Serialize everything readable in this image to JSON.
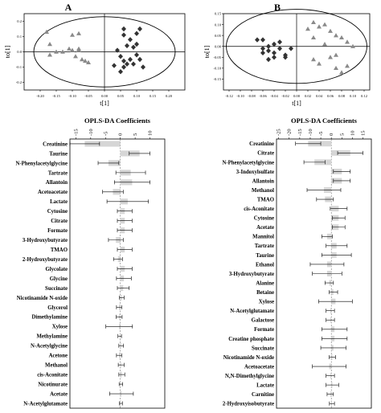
{
  "panels": [
    {
      "label": "A"
    },
    {
      "label": "B"
    }
  ],
  "chart_data": [
    {
      "type": "scatter",
      "panel": "A",
      "xlabel": "t[1]",
      "ylabel": "to[1]",
      "xlim": [
        -0.25,
        0.25
      ],
      "ylim": [
        -0.25,
        0.25
      ],
      "xticks": [
        "-0.20",
        "-0.15",
        "-0.10",
        "-0.05",
        "0.00",
        "0.05",
        "0.10",
        "0.15",
        "0.20"
      ],
      "yticks": [
        "0.2",
        "0.1",
        "0.0",
        "-0.1",
        "-0.2"
      ],
      "tick_values_x": [
        -0.2,
        -0.15,
        -0.1,
        -0.05,
        0.0,
        0.05,
        0.1,
        0.15,
        0.2
      ],
      "tick_values_y": [
        0.2,
        0.1,
        0.0,
        -0.1,
        -0.2
      ],
      "ellipse": {
        "rx": 0.22,
        "ry": 0.23
      },
      "series": [
        {
          "marker": "triangle",
          "color": "#8a8a8a",
          "points": [
            [
              -0.18,
              0.13
            ],
            [
              -0.17,
              0.05
            ],
            [
              -0.17,
              -0.02
            ],
            [
              -0.15,
              0.0
            ],
            [
              -0.13,
              0.0
            ],
            [
              -0.11,
              0.02
            ],
            [
              -0.1,
              0.01
            ],
            [
              -0.09,
              -0.03
            ],
            [
              -0.08,
              0.02
            ],
            [
              -0.08,
              0.12
            ],
            [
              -0.07,
              -0.05
            ],
            [
              -0.06,
              -0.06
            ],
            [
              -0.05,
              -0.07
            ],
            [
              -0.08,
              0.01
            ],
            [
              -0.1,
              0.11
            ]
          ]
        },
        {
          "marker": "diamond",
          "color": "#333333",
          "points": [
            [
              0.06,
              0.15
            ],
            [
              0.06,
              0.11
            ],
            [
              0.07,
              0.04
            ],
            [
              0.08,
              0.08
            ],
            [
              0.09,
              0.03
            ],
            [
              0.1,
              0.12
            ],
            [
              0.11,
              0.15
            ],
            [
              0.1,
              0.05
            ],
            [
              0.1,
              -0.02
            ],
            [
              0.11,
              -0.05
            ],
            [
              0.12,
              -0.1
            ],
            [
              0.05,
              -0.13
            ],
            [
              0.06,
              -0.06
            ],
            [
              0.07,
              -0.08
            ],
            [
              0.08,
              -0.05
            ],
            [
              0.04,
              0.01
            ],
            [
              0.05,
              -0.03
            ],
            [
              0.06,
              -0.1
            ],
            [
              0.03,
              -0.09
            ],
            [
              0.09,
              -0.08
            ]
          ]
        }
      ]
    },
    {
      "type": "scatter",
      "panel": "B",
      "xlabel": "t[1]",
      "ylabel": "to[1]",
      "xlim": [
        -0.13,
        0.13
      ],
      "ylim": [
        -0.2,
        0.15
      ],
      "xticks": [
        "-0.12",
        "-0.10",
        "-0.08",
        "-0.06",
        "-0.04",
        "-0.02",
        "0.00",
        "0.02",
        "0.04",
        "0.06",
        "0.08",
        "0.10",
        "0.12"
      ],
      "yticks": [
        "0.15",
        "0.10",
        "0.05",
        "0.00",
        "-0.05",
        "-0.10",
        "-0.15"
      ],
      "tick_values_x": [
        -0.12,
        -0.1,
        -0.08,
        -0.06,
        -0.04,
        -0.02,
        0.0,
        0.02,
        0.04,
        0.06,
        0.08,
        0.1,
        0.12
      ],
      "tick_values_y": [
        0.15,
        0.1,
        0.05,
        0.0,
        -0.05,
        -0.1,
        -0.15
      ],
      "ellipse": {
        "rx": 0.125,
        "ry": 0.17
      },
      "series": [
        {
          "marker": "diamond",
          "color": "#333333",
          "points": [
            [
              -0.07,
              0.03
            ],
            [
              -0.06,
              0.03
            ],
            [
              -0.06,
              -0.03
            ],
            [
              -0.05,
              0.0
            ],
            [
              -0.05,
              -0.06
            ],
            [
              -0.04,
              -0.05
            ],
            [
              -0.04,
              0.01
            ],
            [
              -0.03,
              -0.01
            ],
            [
              -0.03,
              0.02
            ],
            [
              -0.02,
              -0.04
            ],
            [
              -0.02,
              -0.05
            ],
            [
              -0.05,
              -0.02
            ],
            [
              -0.06,
              -0.01
            ],
            [
              -0.04,
              -0.03
            ],
            [
              -0.01,
              -0.01
            ]
          ]
        },
        {
          "marker": "triangle",
          "color": "#8a8a8a",
          "points": [
            [
              0.03,
              0.11
            ],
            [
              0.04,
              0.09
            ],
            [
              0.05,
              0.1
            ],
            [
              0.06,
              0.07
            ],
            [
              0.07,
              0.05
            ],
            [
              0.08,
              0.04
            ],
            [
              0.09,
              0.02
            ],
            [
              0.1,
              0.0
            ],
            [
              0.05,
              0.01
            ],
            [
              0.03,
              -0.06
            ],
            [
              0.04,
              -0.08
            ],
            [
              0.06,
              -0.05
            ],
            [
              0.07,
              -0.04
            ],
            [
              0.07,
              -0.1
            ],
            [
              0.09,
              -0.09
            ],
            [
              0.03,
              0.04
            ],
            [
              0.02,
              0.08
            ],
            [
              0.08,
              -0.12
            ]
          ]
        }
      ]
    },
    {
      "type": "bar",
      "orientation": "horizontal",
      "panel": "A",
      "title": "OPLS-DA Coefficients",
      "xlim": [
        -17,
        15
      ],
      "xticks": [
        "-15",
        "-10",
        "-5",
        "0",
        "5",
        "10"
      ],
      "tick_values": [
        -15,
        -10,
        -5,
        0,
        5,
        10
      ],
      "categories": [
        "Creatinine",
        "Taurine",
        "N-Phenylacetylglycine",
        "Tartrate",
        "Allantoin",
        "Acetoacetate",
        "Lactate",
        "Cytosine",
        "Citrate",
        "Formate",
        "3-Hydroxybutyrate",
        "TMAO",
        "2-Hydroxybutyrate",
        "Glycolate",
        "Glycine",
        "Succinate",
        "Nicotinamide N-oxide",
        "Glycerol",
        "Dimethylamine",
        "Xylose",
        "Methylamine",
        "N-Acetylglycine",
        "Acetone",
        "Methanol",
        "cis-Aconitate",
        "Nicotinurate",
        "Acetate",
        "N-Acetylglutamate"
      ],
      "values": [
        -12,
        6.5,
        -4,
        3.5,
        4,
        -2.5,
        2.5,
        1.5,
        1.5,
        1.5,
        -1.5,
        1.5,
        -0.8,
        1.5,
        1.2,
        1.0,
        0.5,
        -0.4,
        -0.4,
        -0.4,
        -0.2,
        0.3,
        -0.4,
        0.3,
        0.5,
        0.2,
        0.4,
        0.2
      ],
      "errors": [
        5,
        3.5,
        3.5,
        5,
        6,
        3.5,
        7,
        2.5,
        2.5,
        2.5,
        2.5,
        2.5,
        1.5,
        2.5,
        2.5,
        2,
        0.8,
        0.9,
        1.0,
        4.5,
        0.6,
        0.8,
        0.9,
        1.0,
        1.0,
        0.6,
        4,
        0.5
      ]
    },
    {
      "type": "bar",
      "orientation": "horizontal",
      "panel": "B",
      "title": "OPLS-DA Coefficients",
      "xlim": [
        -26,
        19
      ],
      "xticks": [
        "-25",
        "-20",
        "-15",
        "-10",
        "-5",
        "0",
        "5",
        "10",
        "15"
      ],
      "tick_values": [
        -25,
        -20,
        -15,
        -10,
        -5,
        0,
        5,
        10,
        15
      ],
      "categories": [
        "Creatinine",
        "Citrate",
        "N-Phenylacetylglycine",
        "3-Indoxylsulfate",
        "Allantoin",
        "Methanol",
        "TMAO",
        "cis-Aconitate",
        "Cytosine",
        "Acetate",
        "Mannitol",
        "Tartrate",
        "Taurine",
        "Ethanol",
        "3-Hydroxybutyrate",
        "Alanine",
        "Betaine",
        "Xylose",
        "N-Acetylglutamate",
        "Galactose",
        "Formate",
        "Creatine phosphate",
        "Succinate",
        "Nicotinamide N-oxide",
        "Acetoacetate",
        "N,N-Dimethylglycine",
        "Lactate",
        "Carnitine",
        "2-Hydroxyisobutyrate"
      ],
      "values": [
        -11,
        9,
        -8,
        5,
        5,
        -3.5,
        -3,
        3.5,
        3.5,
        3.5,
        -2,
        2.5,
        2.5,
        -2,
        -2,
        -1,
        1,
        2,
        -0.5,
        -0.5,
        1.5,
        1.5,
        1,
        0.5,
        -1,
        -0.5,
        0.5,
        -0.5,
        0.3
      ],
      "errors": [
        6,
        6,
        5,
        4,
        4,
        8,
        4,
        4,
        3,
        3,
        2.5,
        5,
        7,
        8,
        7,
        2,
        2,
        8,
        2,
        2,
        6,
        6,
        6,
        1.5,
        8,
        2,
        3,
        1.5,
        1.2
      ]
    }
  ]
}
